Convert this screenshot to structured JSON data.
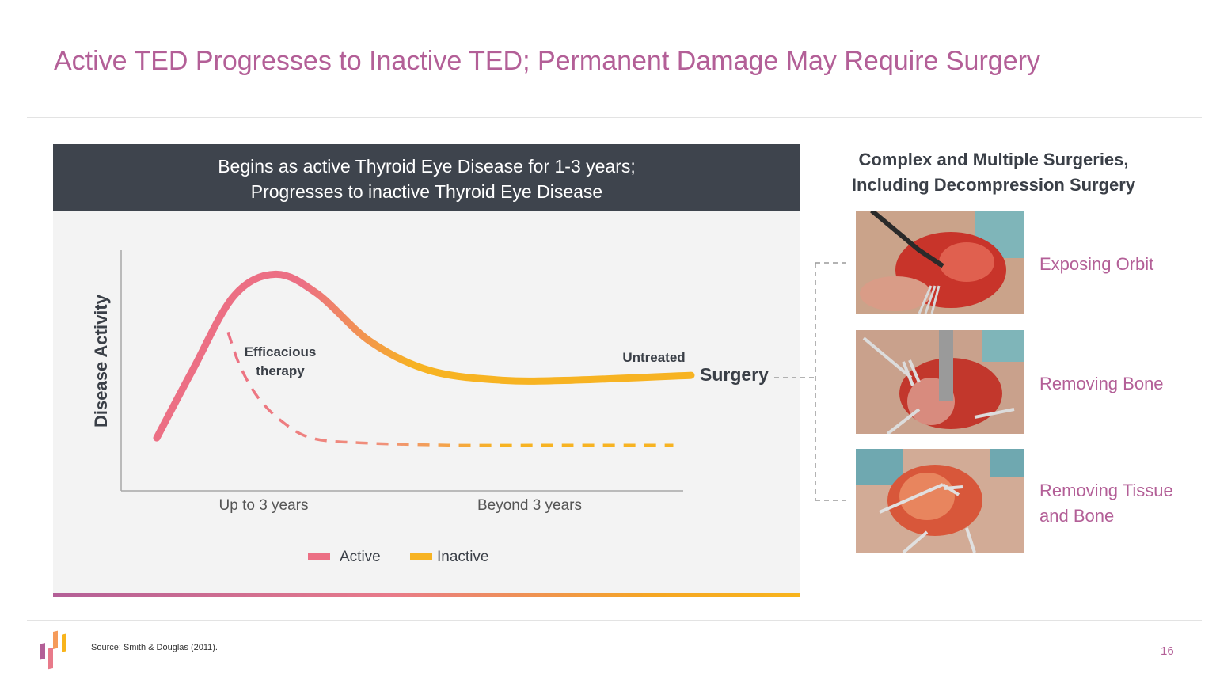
{
  "slide": {
    "title": "Active TED Progresses to Inactive TED; Permanent Damage May Require Surgery",
    "source": "Source:  Smith & Douglas (2011).",
    "page_number": "16"
  },
  "panel": {
    "header_line1": "Begins as active Thyroid Eye Disease for 1-3 years;",
    "header_line2": "Progresses to inactive Thyroid Eye Disease",
    "surgery_label": "Surgery"
  },
  "chart_data": {
    "type": "line",
    "title": "",
    "xlabel": "",
    "ylabel": "Disease Activity",
    "x_ticks": [
      "Up to 3 years",
      "Beyond 3 years"
    ],
    "xlim": [
      0,
      10
    ],
    "ylim": [
      0,
      10
    ],
    "grid": false,
    "legend": {
      "position": "bottom-center",
      "entries": [
        {
          "label": "Active",
          "color": "#ec6f84"
        },
        {
          "label": "Inactive",
          "color": "#f7b322"
        }
      ]
    },
    "series": [
      {
        "name": "Untreated",
        "style": "solid",
        "x": [
          0.6,
          1.2,
          1.9,
          2.6,
          3.3,
          4.2,
          5.2,
          6.4,
          7.6,
          9.6
        ],
        "y": [
          2.2,
          5.0,
          8.1,
          9.0,
          8.2,
          6.2,
          5.0,
          4.6,
          4.6,
          4.8
        ]
      },
      {
        "name": "Efficacious therapy",
        "style": "dashed",
        "x": [
          1.8,
          2.0,
          2.3,
          2.7,
          3.2,
          4.0,
          5.5,
          7.5,
          9.3
        ],
        "y": [
          6.6,
          5.2,
          3.9,
          2.9,
          2.2,
          2.0,
          1.9,
          1.9,
          1.9
        ]
      }
    ],
    "annotations": [
      {
        "text": "Efficacious therapy",
        "lines": [
          "Efficacious",
          "therapy"
        ]
      },
      {
        "text": "Untreated"
      }
    ]
  },
  "surgeries": {
    "title_line1": "Complex and Multiple Surgeries,",
    "title_line2": "Including Decompression Surgery",
    "steps": [
      {
        "label_line1": "Exposing Orbit",
        "label_line2": ""
      },
      {
        "label_line1": "Removing Bone",
        "label_line2": ""
      },
      {
        "label_line1": "Removing Tissue",
        "label_line2": "and Bone"
      }
    ]
  },
  "colors": {
    "title": "#b35f97",
    "header_bg": "#3e444d",
    "active": "#ec6f84",
    "inactive": "#f7b322"
  }
}
